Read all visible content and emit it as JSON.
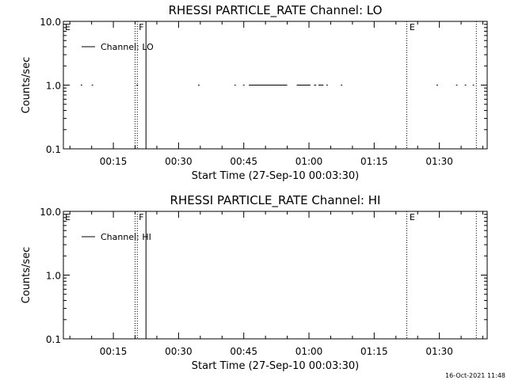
{
  "footer": {
    "timestamp": "16-Oct-2021 11:48"
  },
  "chart_data": [
    {
      "type": "line",
      "title": "RHESSI PARTICLE_RATE Channel: LO",
      "xlabel": "Start Time (27-Sep-10 00:03:30)",
      "ylabel": "Counts/sec",
      "y_scale": "log",
      "ylim": [
        0.1,
        10.0
      ],
      "y_ticks": [
        "10.0",
        "1.0",
        "0.1"
      ],
      "x_ticks": [
        "00:15",
        "00:30",
        "00:45",
        "01:00",
        "01:15",
        "01:30"
      ],
      "x_range": [
        "00:03:30",
        "01:41:00"
      ],
      "legend": {
        "entry": "Channel: LO",
        "placement": "top-left"
      },
      "flags": [
        {
          "label": "E",
          "time": "00:03:30"
        },
        {
          "label": "F",
          "time": "00:20:30"
        },
        {
          "label": "E",
          "time": "01:22:45"
        }
      ],
      "vertical_lines": [
        {
          "time": "00:20:00",
          "style": "dotted"
        },
        {
          "time": "00:20:30",
          "style": "dotted"
        },
        {
          "time": "00:22:30",
          "style": "solid"
        },
        {
          "time": "01:22:30",
          "style": "dotted"
        },
        {
          "time": "01:38:30",
          "style": "dotted"
        }
      ],
      "series": [
        {
          "name": "Channel: LO",
          "segments": [
            {
              "start": "00:07:30",
              "end": "00:07:50",
              "value": 1.0
            },
            {
              "start": "00:10:00",
              "end": "00:10:20",
              "value": 1.0
            },
            {
              "start": "00:20:20",
              "end": "00:20:40",
              "value": 1.0
            },
            {
              "start": "00:34:30",
              "end": "00:34:50",
              "value": 1.0
            },
            {
              "start": "00:42:50",
              "end": "00:43:10",
              "value": 1.0
            },
            {
              "start": "00:44:50",
              "end": "00:45:10",
              "value": 1.0
            },
            {
              "start": "00:46:10",
              "end": "00:55:00",
              "value": 1.0
            },
            {
              "start": "00:57:10",
              "end": "01:00:20",
              "value": 1.0
            },
            {
              "start": "01:01:10",
              "end": "01:01:40",
              "value": 1.0
            },
            {
              "start": "01:02:10",
              "end": "01:03:20",
              "value": 1.0
            },
            {
              "start": "01:04:00",
              "end": "01:04:20",
              "value": 1.0
            },
            {
              "start": "01:07:20",
              "end": "01:07:40",
              "value": 1.0
            },
            {
              "start": "01:29:20",
              "end": "01:29:40",
              "value": 1.0
            },
            {
              "start": "01:33:50",
              "end": "01:34:10",
              "value": 1.0
            },
            {
              "start": "01:35:50",
              "end": "01:36:10",
              "value": 1.0
            },
            {
              "start": "01:37:40",
              "end": "01:38:00",
              "value": 1.0
            }
          ]
        }
      ]
    },
    {
      "type": "line",
      "title": "RHESSI PARTICLE_RATE Channel: HI",
      "xlabel": "Start Time (27-Sep-10 00:03:30)",
      "ylabel": "Counts/sec",
      "y_scale": "log",
      "ylim": [
        0.1,
        10.0
      ],
      "y_ticks": [
        "10.0",
        "1.0",
        "0.1"
      ],
      "x_ticks": [
        "00:15",
        "00:30",
        "00:45",
        "01:00",
        "01:15",
        "01:30"
      ],
      "x_range": [
        "00:03:30",
        "01:41:00"
      ],
      "legend": {
        "entry": "Channel: HI",
        "placement": "top-left"
      },
      "flags": [
        {
          "label": "E",
          "time": "00:03:30"
        },
        {
          "label": "F",
          "time": "00:20:30"
        },
        {
          "label": "E",
          "time": "01:22:45"
        }
      ],
      "vertical_lines": [
        {
          "time": "00:20:00",
          "style": "dotted"
        },
        {
          "time": "00:20:30",
          "style": "dotted"
        },
        {
          "time": "00:22:30",
          "style": "solid"
        },
        {
          "time": "01:22:30",
          "style": "dotted"
        },
        {
          "time": "01:38:30",
          "style": "dotted"
        }
      ],
      "series": [
        {
          "name": "Channel: HI",
          "segments": []
        }
      ]
    }
  ]
}
